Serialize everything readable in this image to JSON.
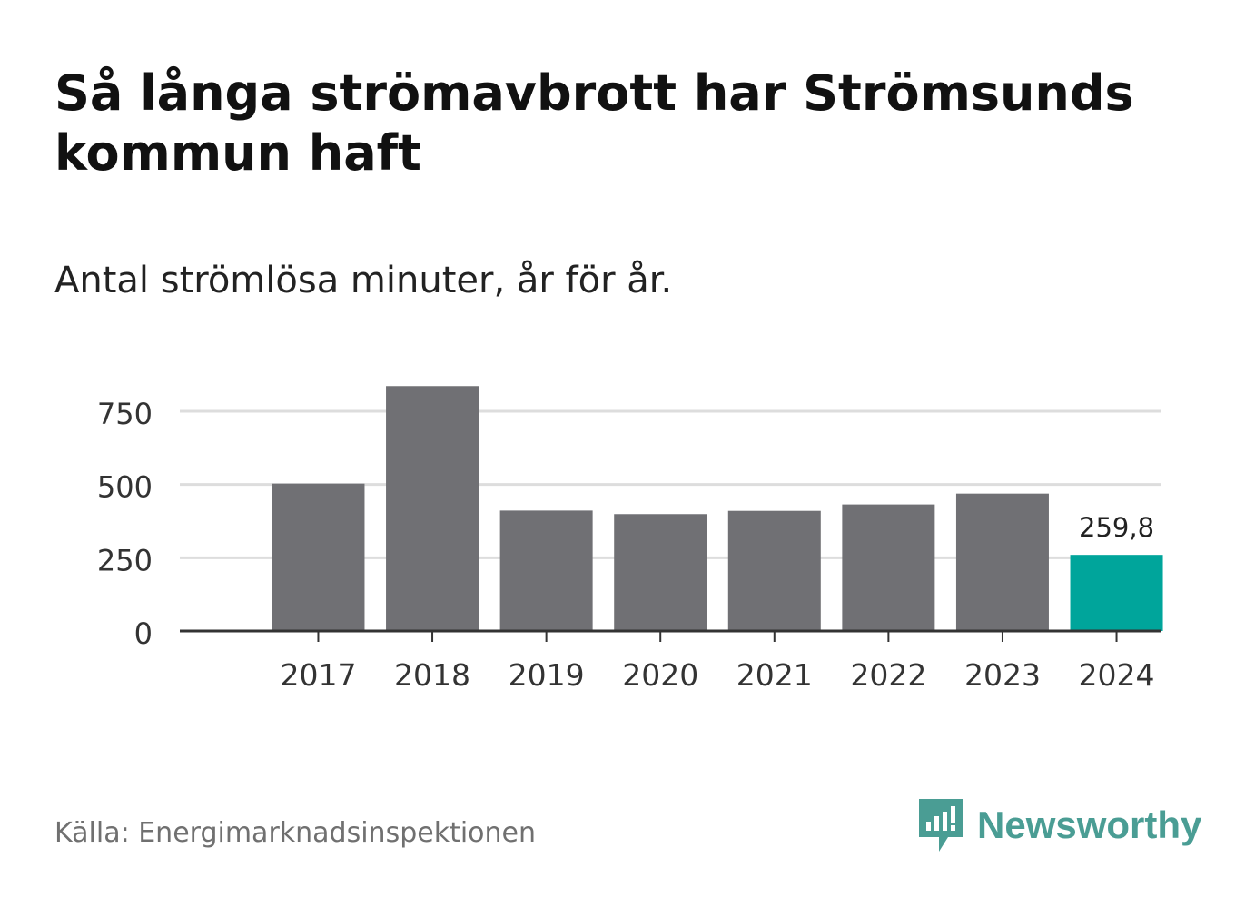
{
  "title": "Så långa strömavbrott har Strömsunds kommun haft",
  "subtitle": "Antal strömlösa minuter, år för år.",
  "source": "Källa: Energimarknadsinspektionen",
  "brand": {
    "name": "Newsworthy",
    "icon": "newsworthy-logo-icon"
  },
  "colors": {
    "bar": "#707074",
    "highlight": "#00a59b",
    "grid": "#dddddd",
    "axis": "#333333",
    "brand": "#4a9d94"
  },
  "chart_data": {
    "type": "bar",
    "title": "Så långa strömavbrott har Strömsunds kommun haft",
    "subtitle": "Antal strömlösa minuter, år för år.",
    "xlabel": "",
    "ylabel": "",
    "categories": [
      "2017",
      "2018",
      "2019",
      "2020",
      "2021",
      "2022",
      "2023",
      "2024"
    ],
    "values": [
      503,
      836,
      411,
      399,
      410,
      432,
      469,
      259.8
    ],
    "highlight_index": 7,
    "annotation": {
      "index": 7,
      "text": "259,8"
    },
    "yticks": [
      0,
      250,
      500,
      750
    ],
    "ytick_labels": [
      "0",
      "250",
      "500",
      "750"
    ],
    "ylim": [
      0,
      840
    ],
    "grid": true
  }
}
